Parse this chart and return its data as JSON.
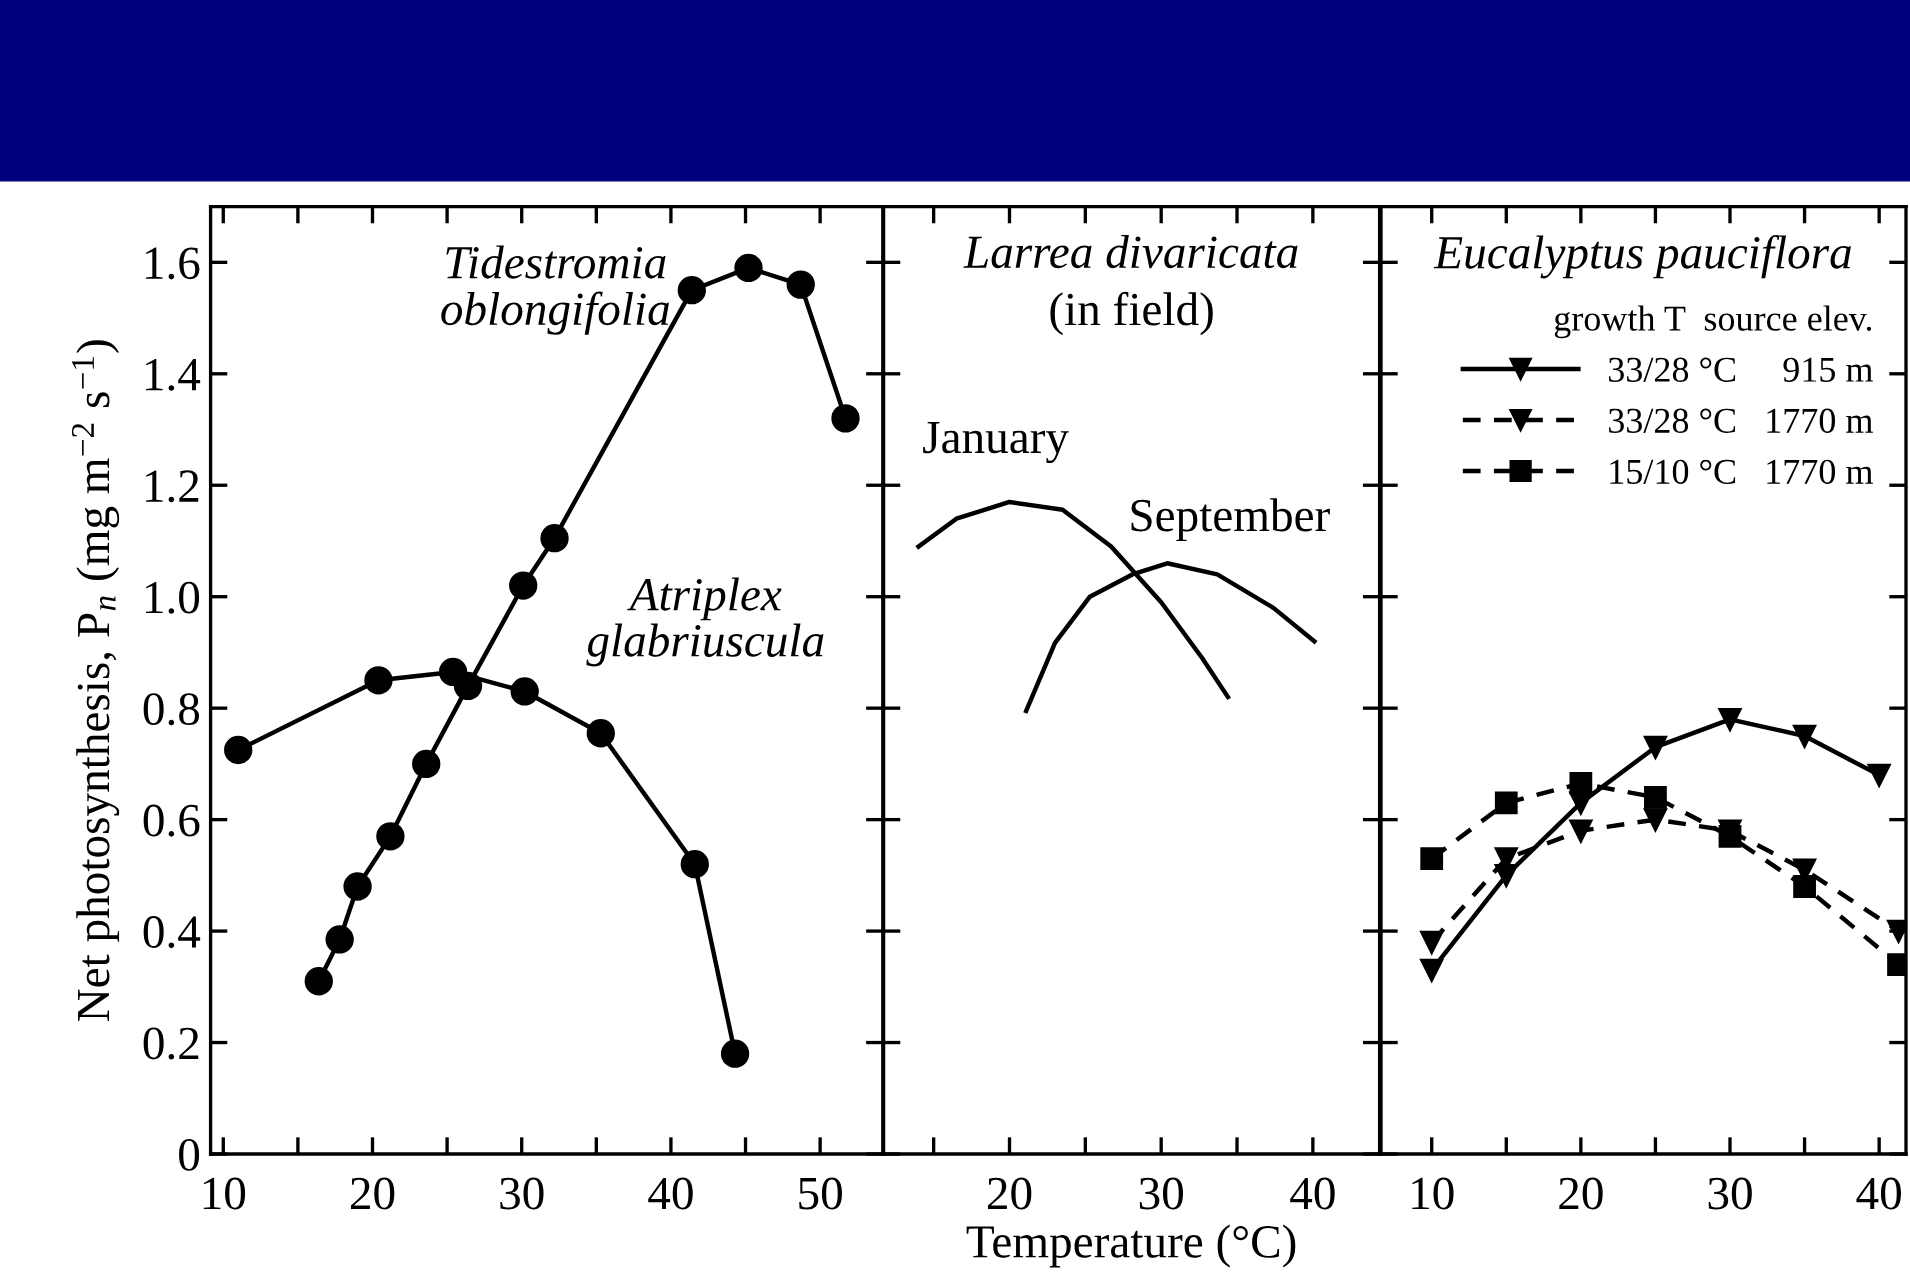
{
  "chart_data": [
    {
      "type": "line",
      "ylabel": "Net photosynthesis, P$_{n}$ (mg m$^{−2}$ s$^{−1}$)",
      "xlim": [
        9.15,
        54.2
      ],
      "ylim": [
        0,
        1.7
      ],
      "xticks": [
        10,
        {
          "value": 15,
          "label": null
        },
        20,
        {
          "value": 25,
          "label": null
        },
        30,
        {
          "value": 35,
          "label": null
        },
        40,
        {
          "value": 45,
          "label": null
        },
        50
      ],
      "yticks": [
        0,
        0.2,
        0.4,
        0.6,
        0.8,
        {
          "value": 1,
          "label": "1.0"
        },
        1.2,
        1.4,
        1.6
      ],
      "grid": false,
      "line_style": "solid",
      "series": [
        {
          "name": "Tidestromia\noblongifolia",
          "color": "#000000",
          "marker": "circle",
          "x": [
            16.4,
            17.8,
            19.0,
            21.2,
            23.6,
            26.4,
            30.1,
            32.2,
            41.4,
            45.2,
            48.7,
            51.7
          ],
          "values": [
            0.31,
            0.385,
            0.48,
            0.57,
            0.7,
            0.84,
            1.02,
            1.105,
            1.55,
            1.59,
            1.56,
            1.32
          ]
        },
        {
          "name": "Atriplex\nglabriuscula",
          "color": "#000000",
          "marker": "circle",
          "x": [
            11.0,
            20.4,
            25.4,
            30.2,
            35.3,
            41.6,
            44.3
          ],
          "values": [
            0.725,
            0.85,
            0.865,
            0.83,
            0.755,
            0.52,
            0.18
          ]
        }
      ]
    },
    {
      "type": "line",
      "title": "Larrea divaricata",
      "subtitle": "(in field)",
      "xlabel": "Temperature (°C)",
      "xlim": [
        11.7,
        44.4
      ],
      "ylim": [
        0,
        1.7
      ],
      "xticks": [
        {
          "value": 15,
          "label": null
        },
        20,
        {
          "value": 25,
          "label": null
        },
        30,
        {
          "value": 35,
          "label": null
        },
        40
      ],
      "yticks": [
        {
          "value": 0,
          "label": null
        },
        {
          "value": 0.2,
          "label": null
        },
        {
          "value": 0.4,
          "label": null
        },
        {
          "value": 0.6,
          "label": null
        },
        {
          "value": 0.8,
          "label": null
        },
        {
          "value": 1,
          "label": null
        },
        {
          "value": 1.2,
          "label": null
        },
        {
          "value": 1.4,
          "label": null
        },
        {
          "value": 1.6,
          "label": null
        }
      ],
      "tick_labels": "x",
      "grid": false,
      "line_style": "solid",
      "marker": "none",
      "series": [
        {
          "name": "January",
          "color": "#000000",
          "x": [
            14.0,
            16.5,
            20.0,
            23.5,
            26.7,
            30.0,
            32.7,
            34.4
          ],
          "values": [
            1.09,
            1.14,
            1.17,
            1.156,
            1.09,
            0.99,
            0.89,
            0.82
          ]
        },
        {
          "name": "September",
          "color": "#000000",
          "x": [
            21.1,
            23.0,
            25.3,
            28.1,
            30.4,
            33.7,
            37.4,
            40.1
          ],
          "values": [
            0.795,
            0.917,
            1.0,
            1.04,
            1.06,
            1.04,
            0.98,
            0.92
          ]
        }
      ]
    },
    {
      "type": "line",
      "title": "Eucalyptus pauciflora",
      "legend_title": "growth T  source elev.",
      "xlim": [
        6.6,
        41.8
      ],
      "ylim": [
        0,
        1.7
      ],
      "xticks": [
        10,
        {
          "value": 15,
          "label": null
        },
        20,
        {
          "value": 25,
          "label": null
        },
        30,
        {
          "value": 35,
          "label": null
        },
        40
      ],
      "yticks": [
        {
          "value": 0,
          "label": null
        },
        {
          "value": 0.2,
          "label": null
        },
        {
          "value": 0.4,
          "label": null
        },
        {
          "value": 0.6,
          "label": null
        },
        {
          "value": 0.8,
          "label": null
        },
        {
          "value": 1,
          "label": null
        },
        {
          "value": 1.2,
          "label": null
        },
        {
          "value": 1.4,
          "label": null
        },
        {
          "value": 1.6,
          "label": null
        }
      ],
      "tick_labels": "x",
      "grid": false,
      "legend": "top right",
      "series": [
        {
          "name": "33/28 °C     915 m",
          "color": "#000000",
          "marker": "triangle",
          "line_style": "solid",
          "x": [
            10,
            15,
            20,
            25,
            30,
            35,
            40
          ],
          "values": [
            0.33,
            0.5,
            0.63,
            0.73,
            0.78,
            0.75,
            0.68
          ]
        },
        {
          "name": "33/28 °C   1770 m",
          "color": "#000000",
          "marker": "triangle",
          "line_style": "dashed",
          "x": [
            10,
            15,
            20,
            25,
            30,
            35,
            41.3
          ],
          "values": [
            0.38,
            0.53,
            0.58,
            0.6,
            0.58,
            0.51,
            0.4
          ]
        },
        {
          "name": "15/10 °C   1770 m",
          "color": "#000000",
          "marker": "square",
          "line_style": "dashed",
          "x": [
            10,
            15,
            20,
            25,
            30,
            35,
            41.3
          ],
          "values": [
            0.53,
            0.63,
            0.665,
            0.64,
            0.57,
            0.48,
            0.34
          ]
        }
      ]
    }
  ]
}
